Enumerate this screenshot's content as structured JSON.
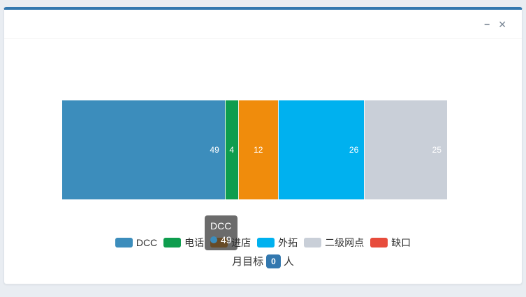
{
  "window": {
    "minimize_icon": "−",
    "close_icon": "✕"
  },
  "chart_data": {
    "type": "bar",
    "orientation": "horizontal-stacked",
    "series": [
      {
        "name": "DCC",
        "value": 49,
        "color": "#3c8dbc"
      },
      {
        "name": "电话",
        "value": 4,
        "color": "#0e9d4e"
      },
      {
        "name": "进店",
        "value": 12,
        "color": "#f08c0c"
      },
      {
        "name": "外拓",
        "value": 26,
        "color": "#00b1ef"
      },
      {
        "name": "二级网点",
        "value": 25,
        "color": "#c9cfd8"
      },
      {
        "name": "缺口",
        "value": 0,
        "color": "#e74c3c"
      }
    ],
    "legend": [
      "DCC",
      "电话",
      "进店",
      "外拓",
      "二级网点",
      "缺口"
    ],
    "legend_position": "bottom",
    "value_labels_color": "#ffffff"
  },
  "tooltip": {
    "title": "DCC",
    "value": "49",
    "marker_color": "#3c8dbc"
  },
  "target": {
    "prefix": "月目标",
    "value": "0",
    "suffix": "人"
  }
}
